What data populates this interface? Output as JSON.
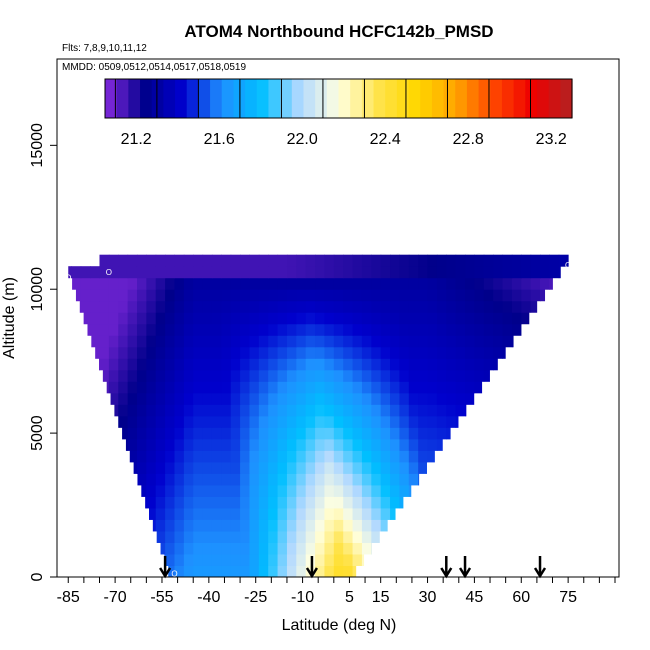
{
  "chart_data": {
    "type": "heatmap",
    "title": "ATOM4 Northbound HCFC142b_PMSD",
    "flights_text": "Flts: 7,8,9,10,11,12",
    "dates_text": "MMDD: 0509,0512,0514,0517,0518,0519",
    "xlabel": "Latitude (deg N)",
    "ylabel": "Altitude (m)",
    "xlim": [
      -87,
      90
    ],
    "ylim": [
      0,
      18000
    ],
    "x_ticks": [
      -85,
      -70,
      -55,
      -40,
      -25,
      -10,
      5,
      15,
      30,
      45,
      60,
      75
    ],
    "x_tick_labels": [
      "-85",
      "-70",
      "-55",
      "-40",
      "-25",
      "-10",
      "5",
      "15",
      "30",
      "45",
      "60",
      "75"
    ],
    "y_ticks": [
      0,
      5000,
      10000,
      15000
    ],
    "y_tick_labels": [
      "0",
      "5000",
      "10000",
      "15000"
    ],
    "colorbar": {
      "min": 21.05,
      "max": 23.3,
      "ticks": [
        21.2,
        21.6,
        22.0,
        22.4,
        22.8,
        23.2
      ],
      "tick_labels": [
        "21.2",
        "21.6",
        "22.0",
        "22.4",
        "22.8",
        "23.2"
      ],
      "colors": [
        "#8a2be2",
        "#00008b",
        "#0000cd",
        "#1e90ff",
        "#00bfff",
        "#b0d8ff",
        "#ffffe0",
        "#ffe44d",
        "#ffd700",
        "#ffa500",
        "#ff4500",
        "#ee0000",
        "#b22222"
      ]
    },
    "domain_boundary": {
      "top_altitude": 10800,
      "top_lat_range": [
        -75,
        75
      ],
      "bottom_lat_range": [
        -52,
        7
      ],
      "left_edge_at_10400": -85
    },
    "vertical_profile_latitudes": [
      -54,
      -7,
      36,
      42,
      66
    ],
    "profile_marker_labels": [
      "O",
      "O",
      "O",
      "O"
    ]
  }
}
